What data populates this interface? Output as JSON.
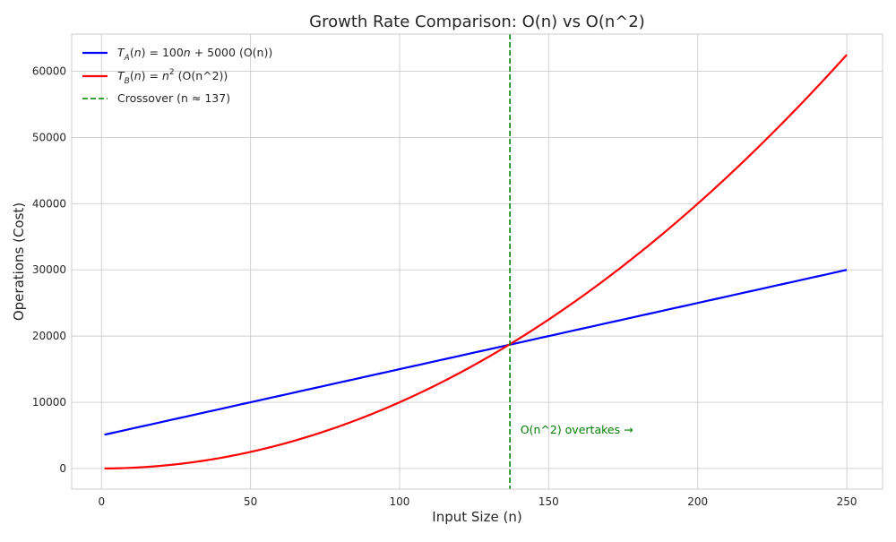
{
  "chart_data": {
    "type": "line",
    "title": "Growth Rate Comparison: O(n) vs O(n^2)",
    "xlabel": "Input Size (n)",
    "ylabel": "Operations (Cost)",
    "xlim": [
      -10,
      262
    ],
    "ylim": [
      -3125,
      65625
    ],
    "xticks": [
      0,
      50,
      100,
      150,
      200,
      250
    ],
    "yticks": [
      0,
      10000,
      20000,
      30000,
      40000,
      50000,
      60000
    ],
    "grid": true,
    "legend": "top-left",
    "series": [
      {
        "name_main": "T_A(n) = 100n + 5000",
        "name_suffix": "(O(n))",
        "color": "#0000ff",
        "style": "solid",
        "formula": "100*n + 5000",
        "x": [
          1,
          250
        ],
        "y": [
          5100,
          30000
        ]
      },
      {
        "name_main": "T_B(n) = n^2",
        "name_suffix": "(O(n^2))",
        "color": "#ff0000",
        "style": "solid",
        "formula": "n^2",
        "x": [
          1,
          25,
          50,
          75,
          100,
          125,
          137,
          150,
          175,
          200,
          225,
          250
        ],
        "y": [
          1,
          625,
          2500,
          5625,
          10000,
          15625,
          18769,
          22500,
          30625,
          40000,
          50625,
          62500
        ]
      }
    ],
    "crossover": {
      "name": "Crossover (n ≈ 137)",
      "x": 137,
      "color": "#008000",
      "style": "dashed"
    },
    "annotations": [
      {
        "text": "O(n^2) overtakes →",
        "x": 139,
        "y": 5000,
        "color": "#008000"
      }
    ]
  }
}
